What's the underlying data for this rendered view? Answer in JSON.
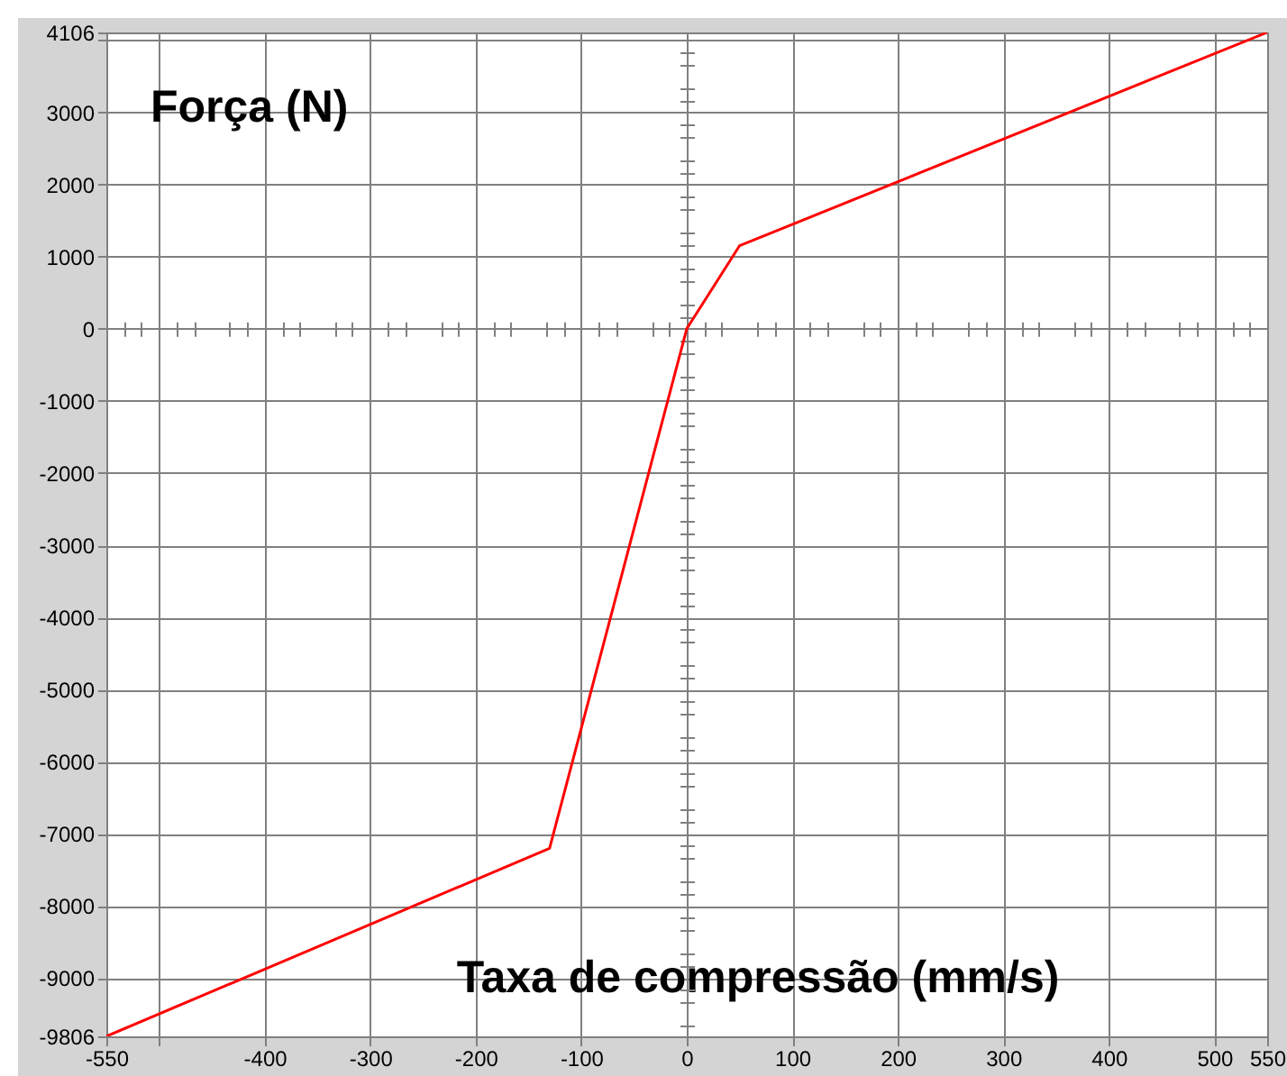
{
  "chart_data": {
    "type": "line",
    "xlabel": "Taxa de compressão (mm/s)",
    "ylabel": "Força (N)",
    "x": [
      -550,
      -130,
      0,
      50,
      550
    ],
    "series": [
      {
        "color": "#ff0000",
        "values": [
          -9806,
          -7200,
          0,
          1150,
          4106
        ]
      }
    ],
    "xlim": [
      -550,
      550
    ],
    "ylim": [
      -9806,
      4106
    ],
    "xticks": [
      -550,
      {
        "value": -533,
        "label": null
      },
      {
        "value": -517,
        "label": null
      },
      {
        "value": -500,
        "label": null
      },
      {
        "value": -483,
        "label": null
      },
      {
        "value": -467,
        "label": null
      },
      {
        "value": -433,
        "label": null
      },
      {
        "value": -417,
        "label": null
      },
      -400,
      {
        "value": -383,
        "label": null
      },
      {
        "value": -367,
        "label": null
      },
      {
        "value": -333,
        "label": null
      },
      {
        "value": -317,
        "label": null
      },
      -300,
      {
        "value": -283,
        "label": null
      },
      {
        "value": -267,
        "label": null
      },
      {
        "value": -233,
        "label": null
      },
      {
        "value": -217,
        "label": null
      },
      -200,
      {
        "value": -183,
        "label": null
      },
      {
        "value": -167,
        "label": null
      },
      {
        "value": -133,
        "label": null
      },
      {
        "value": -117,
        "label": null
      },
      -100,
      {
        "value": -83,
        "label": null
      },
      {
        "value": -67,
        "label": null
      },
      {
        "value": -33,
        "label": null
      },
      {
        "value": -17,
        "label": null
      },
      0,
      {
        "value": 17,
        "label": null
      },
      {
        "value": 33,
        "label": null
      },
      {
        "value": 67,
        "label": null
      },
      {
        "value": 83,
        "label": null
      },
      100,
      {
        "value": 117,
        "label": null
      },
      {
        "value": 133,
        "label": null
      },
      {
        "value": 167,
        "label": null
      },
      {
        "value": 183,
        "label": null
      },
      200,
      {
        "value": 217,
        "label": null
      },
      {
        "value": 233,
        "label": null
      },
      {
        "value": 267,
        "label": null
      },
      {
        "value": 283,
        "label": null
      },
      300,
      {
        "value": 317,
        "label": null
      },
      {
        "value": 333,
        "label": null
      },
      {
        "value": 367,
        "label": null
      },
      {
        "value": 383,
        "label": null
      },
      400,
      {
        "value": 417,
        "label": null
      },
      {
        "value": 433,
        "label": null
      },
      {
        "value": 467,
        "label": null
      },
      {
        "value": 483,
        "label": null
      },
      500,
      {
        "value": 517,
        "label": null
      },
      {
        "value": 533,
        "label": null
      },
      550
    ],
    "yticks": [
      -9806,
      {
        "value": -9667,
        "label": null
      },
      {
        "value": -9333,
        "label": null
      },
      {
        "value": -9167,
        "label": null
      },
      -9000,
      {
        "value": -8833,
        "label": null
      },
      {
        "value": -8667,
        "label": null
      },
      {
        "value": -8333,
        "label": null
      },
      {
        "value": -8167,
        "label": null
      },
      -8000,
      {
        "value": -7833,
        "label": null
      },
      {
        "value": -7667,
        "label": null
      },
      {
        "value": -7333,
        "label": null
      },
      {
        "value": -7167,
        "label": null
      },
      -7000,
      {
        "value": -6833,
        "label": null
      },
      {
        "value": -6667,
        "label": null
      },
      {
        "value": -6333,
        "label": null
      },
      {
        "value": -6167,
        "label": null
      },
      -6000,
      {
        "value": -5833,
        "label": null
      },
      {
        "value": -5667,
        "label": null
      },
      {
        "value": -5333,
        "label": null
      },
      {
        "value": -5167,
        "label": null
      },
      -5000,
      {
        "value": -4833,
        "label": null
      },
      {
        "value": -4667,
        "label": null
      },
      {
        "value": -4333,
        "label": null
      },
      {
        "value": -4167,
        "label": null
      },
      -4000,
      {
        "value": -3833,
        "label": null
      },
      {
        "value": -3667,
        "label": null
      },
      {
        "value": -3333,
        "label": null
      },
      {
        "value": -3167,
        "label": null
      },
      -3000,
      {
        "value": -2833,
        "label": null
      },
      {
        "value": -2667,
        "label": null
      },
      {
        "value": -2333,
        "label": null
      },
      {
        "value": -2167,
        "label": null
      },
      -2000,
      {
        "value": -1833,
        "label": null
      },
      {
        "value": -1667,
        "label": null
      },
      {
        "value": -1333,
        "label": null
      },
      {
        "value": -1167,
        "label": null
      },
      -1000,
      {
        "value": -833,
        "label": null
      },
      {
        "value": -667,
        "label": null
      },
      {
        "value": -333,
        "label": null
      },
      {
        "value": -167,
        "label": null
      },
      0,
      {
        "value": 167,
        "label": null
      },
      {
        "value": 333,
        "label": null
      },
      {
        "value": 667,
        "label": null
      },
      {
        "value": 833,
        "label": null
      },
      1000,
      {
        "value": 1167,
        "label": null
      },
      {
        "value": 1333,
        "label": null
      },
      {
        "value": 1667,
        "label": null
      },
      {
        "value": 1833,
        "label": null
      },
      2000,
      {
        "value": 2167,
        "label": null
      },
      {
        "value": 2333,
        "label": null
      },
      {
        "value": 2667,
        "label": null
      },
      {
        "value": 2833,
        "label": null
      },
      3000,
      {
        "value": 3167,
        "label": null
      },
      {
        "value": 3333,
        "label": null
      },
      {
        "value": 3667,
        "label": null
      },
      {
        "value": 3833,
        "label": null
      },
      {
        "value": 4000,
        "label": null
      },
      4106
    ],
    "grid": true
  }
}
